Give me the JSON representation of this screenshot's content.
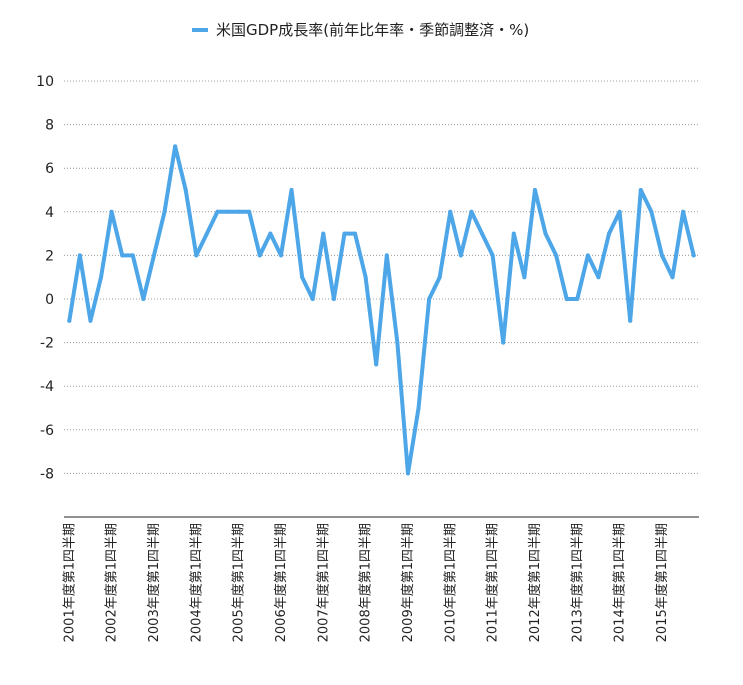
{
  "chart_data": {
    "type": "line",
    "legend": "米国GDP成長率(前年比年率・季節調整済・%)",
    "legend_position": "top-center",
    "ylim": [
      -10,
      10
    ],
    "yticks": [
      10,
      8,
      6,
      4,
      2,
      0,
      -2,
      -4,
      -6,
      -8
    ],
    "grid": true,
    "series_color": "#4da6e8",
    "x_labels": [
      {
        "label": "2001年度第1四半期",
        "index": 0
      },
      {
        "label": "2002年度第1四半期",
        "index": 4
      },
      {
        "label": "2003年度第1四半期",
        "index": 8
      },
      {
        "label": "2004年度第1四半期",
        "index": 12
      },
      {
        "label": "2005年度第1四半期",
        "index": 16
      },
      {
        "label": "2006年度第1四半期",
        "index": 20
      },
      {
        "label": "2007年度第1四半期",
        "index": 24
      },
      {
        "label": "2008年度第1四半期",
        "index": 28
      },
      {
        "label": "2009年度第1四半期",
        "index": 32
      },
      {
        "label": "2010年度第1四半期",
        "index": 36
      },
      {
        "label": "2011年度第1四半期",
        "index": 40
      },
      {
        "label": "2012年度第1四半期",
        "index": 44
      },
      {
        "label": "2013年度第1四半期",
        "index": 48
      },
      {
        "label": "2014年度第1四半期",
        "index": 52
      },
      {
        "label": "2015年度第1四半期",
        "index": 56
      }
    ],
    "series": [
      {
        "name": "米国GDP成長率(前年比年率・季節調整済・%)",
        "values": [
          -1,
          2,
          -1,
          1,
          4,
          2,
          2,
          0,
          2,
          4,
          7,
          5,
          2,
          3,
          4,
          4,
          4,
          4,
          2,
          3,
          2,
          5,
          1,
          0,
          3,
          0,
          3,
          3,
          1,
          -3,
          2,
          -2,
          -8,
          -5,
          0,
          1,
          4,
          2,
          4,
          3,
          2,
          -2,
          3,
          1,
          5,
          3,
          2,
          0,
          0,
          2,
          1,
          3,
          4,
          -1,
          5,
          4,
          2,
          1,
          4,
          2
        ]
      }
    ]
  }
}
